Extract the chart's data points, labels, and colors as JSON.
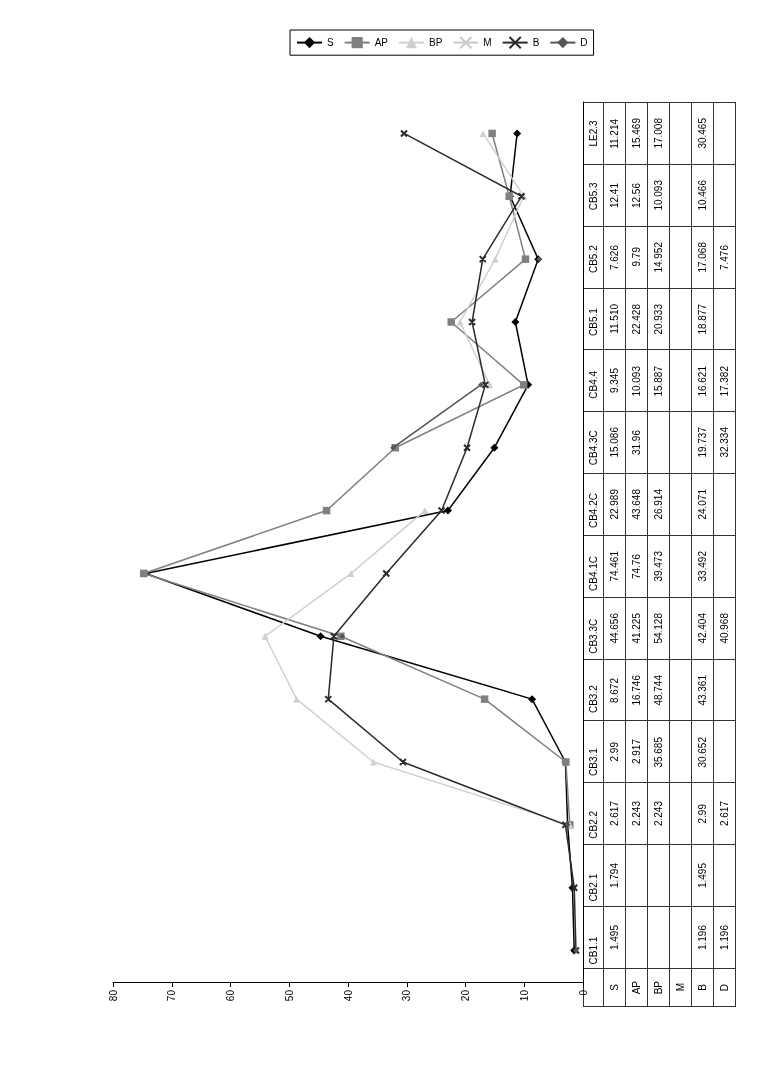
{
  "chart_data": {
    "type": "line",
    "orientation": "horizontal",
    "categories": [
      "LE2.3",
      "CB5.3",
      "CB5.2",
      "CB5.1",
      "CB4.4",
      "CB4.3C",
      "CB4.2C",
      "CB4.1C",
      "CB3.3C",
      "CB3.2",
      "CB3.1",
      "CB2.2",
      "CB2.1",
      "CB1.1"
    ],
    "xlim": [
      80,
      0
    ],
    "xticks": [
      80,
      70,
      60,
      50,
      40,
      30,
      20,
      10,
      0
    ],
    "grid": false,
    "legend": "top",
    "line_style": "solid",
    "series": [
      {
        "name": "S",
        "color": "#000000",
        "marker": "diamond",
        "values": [
          11.214,
          12.41,
          7.626,
          11.51,
          9.345,
          15.086,
          22.989,
          74.461,
          44.656,
          8.672,
          2.99,
          2.617,
          1.794,
          1.495
        ],
        "value_labels": [
          "11.214",
          "12.41",
          "7.626",
          "11.510",
          "9.345",
          "15.086",
          "22.989",
          "74.461",
          "44.656",
          "8.672",
          "2.99",
          "2.617",
          "1.794",
          "1.495"
        ]
      },
      {
        "name": "AP",
        "color": "#808080",
        "marker": "square",
        "values": [
          15.469,
          12.56,
          9.79,
          22.428,
          10.093,
          31.96,
          43.648,
          74.76,
          41.225,
          16.746,
          2.917,
          2.243,
          null,
          null
        ],
        "value_labels": [
          "15.469",
          "12.56",
          "9.79",
          "22.428",
          "10.093",
          "31.96",
          "43.648",
          "74.76",
          "41.225",
          "16.746",
          "2.917",
          "2.243",
          null,
          null
        ]
      },
      {
        "name": "BP",
        "color": "#d0d0d0",
        "marker": "triangle",
        "values": [
          17.008,
          10.093,
          14.952,
          20.933,
          15.887,
          null,
          26.914,
          39.473,
          54.128,
          48.744,
          35.685,
          2.243,
          null,
          null
        ],
        "value_labels": [
          "17.008",
          "10.093",
          "14.952",
          "20.933",
          "15.887",
          null,
          "26.914",
          "39.473",
          "54.128",
          "48.744",
          "35.685",
          "2.243",
          null,
          null
        ]
      },
      {
        "name": "M",
        "color": "#c8c8c8",
        "marker": "cross",
        "values": [
          null,
          null,
          null,
          null,
          null,
          null,
          null,
          null,
          null,
          null,
          null,
          null,
          null,
          null
        ]
      },
      {
        "name": "B",
        "color": "#2a2a2a",
        "marker": "cross",
        "values": [
          30.465,
          10.466,
          17.068,
          18.877,
          16.621,
          19.737,
          24.071,
          33.492,
          42.404,
          43.361,
          30.652,
          2.99,
          1.495,
          1.196
        ],
        "value_labels": [
          "30.465",
          "10.466",
          "17.068",
          "18.877",
          "16.621",
          "19.737",
          "24.071",
          "33.492",
          "42.404",
          "43.361",
          "30.652",
          "2.99",
          "1.495",
          "1.196"
        ]
      },
      {
        "name": "D",
        "color": "#555555",
        "marker": "diamond",
        "values": [
          null,
          null,
          7.476,
          null,
          17.382,
          32.334,
          null,
          null,
          40.968,
          null,
          null,
          2.617,
          null,
          1.196
        ],
        "value_labels": [
          null,
          null,
          "7.476",
          null,
          "17.382",
          "32.334",
          null,
          null,
          "40.968",
          null,
          null,
          "2.617",
          null,
          "1.196"
        ]
      }
    ]
  }
}
